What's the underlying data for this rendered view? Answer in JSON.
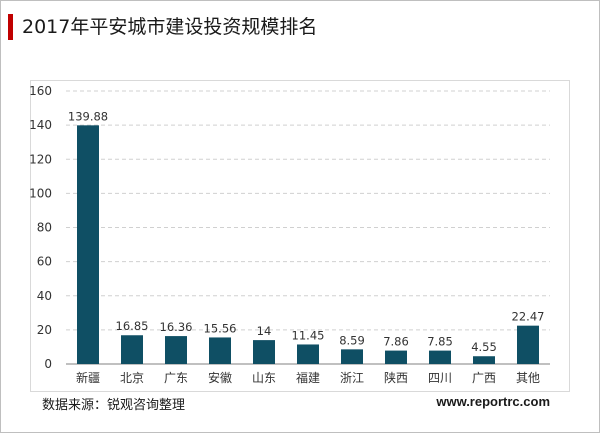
{
  "title": "2017年平安城市建设投资规模排名",
  "source": "数据来源：锐观咨询整理",
  "website": "www.reportrc.com",
  "colors": {
    "bar": "#0f4f64",
    "accent": "#c00000",
    "grid": "#d0d0d0"
  },
  "chart_data": {
    "type": "bar",
    "title": "2017年平安城市建设投资规模排名",
    "xlabel": "",
    "ylabel": "",
    "ylim": [
      0,
      160
    ],
    "yticks": [
      0,
      20,
      40,
      60,
      80,
      100,
      120,
      140,
      160
    ],
    "grid": true,
    "categories": [
      "新疆",
      "北京",
      "广东",
      "安徽",
      "山东",
      "福建",
      "浙江",
      "陕西",
      "四川",
      "广西",
      "其他"
    ],
    "values": [
      139.88,
      16.85,
      16.36,
      15.56,
      14,
      11.45,
      8.59,
      7.86,
      7.85,
      4.55,
      22.47
    ],
    "value_labels": [
      "139.88",
      "16.85",
      "16.36",
      "15.56",
      "14",
      "11.45",
      "8.59",
      "7.86",
      "7.85",
      "4.55",
      "22.47"
    ]
  }
}
